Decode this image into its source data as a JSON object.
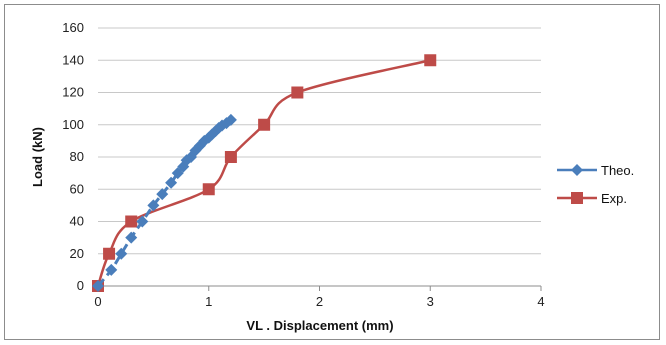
{
  "chart_data": {
    "type": "line",
    "title": "",
    "xlabel": "VL . Displacement (mm)",
    "ylabel": "Load (kN)",
    "xlim": [
      0,
      4
    ],
    "ylim": [
      0,
      160
    ],
    "xticks": [
      0,
      1,
      2,
      3,
      4
    ],
    "yticks": [
      0,
      20,
      40,
      60,
      80,
      100,
      120,
      140,
      160
    ],
    "grid": "horizontal",
    "legend_position": "right",
    "series": [
      {
        "name": "Theo.",
        "color": "#4a7ebb",
        "marker": "diamond",
        "line_style": "dashed",
        "points": [
          [
            0,
            0
          ],
          [
            0.12,
            10
          ],
          [
            0.21,
            20
          ],
          [
            0.3,
            30
          ],
          [
            0.4,
            40
          ],
          [
            0.5,
            50
          ],
          [
            0.58,
            57
          ],
          [
            0.66,
            64
          ],
          [
            0.72,
            70
          ],
          [
            0.77,
            74
          ],
          [
            0.8,
            78
          ],
          [
            0.84,
            80
          ],
          [
            0.88,
            84
          ],
          [
            0.92,
            87
          ],
          [
            0.96,
            90
          ],
          [
            1.0,
            92
          ],
          [
            1.03,
            94
          ],
          [
            1.06,
            96
          ],
          [
            1.09,
            98
          ],
          [
            1.12,
            99.5
          ],
          [
            1.16,
            101
          ],
          [
            1.2,
            103
          ]
        ]
      },
      {
        "name": "Exp.",
        "color": "#be4b48",
        "marker": "square",
        "line_style": "solid",
        "points": [
          [
            0,
            0
          ],
          [
            0.1,
            20
          ],
          [
            0.3,
            40
          ],
          [
            1.0,
            60
          ],
          [
            1.2,
            80
          ],
          [
            1.5,
            100
          ],
          [
            1.8,
            120
          ],
          [
            3.0,
            140
          ]
        ]
      }
    ]
  }
}
